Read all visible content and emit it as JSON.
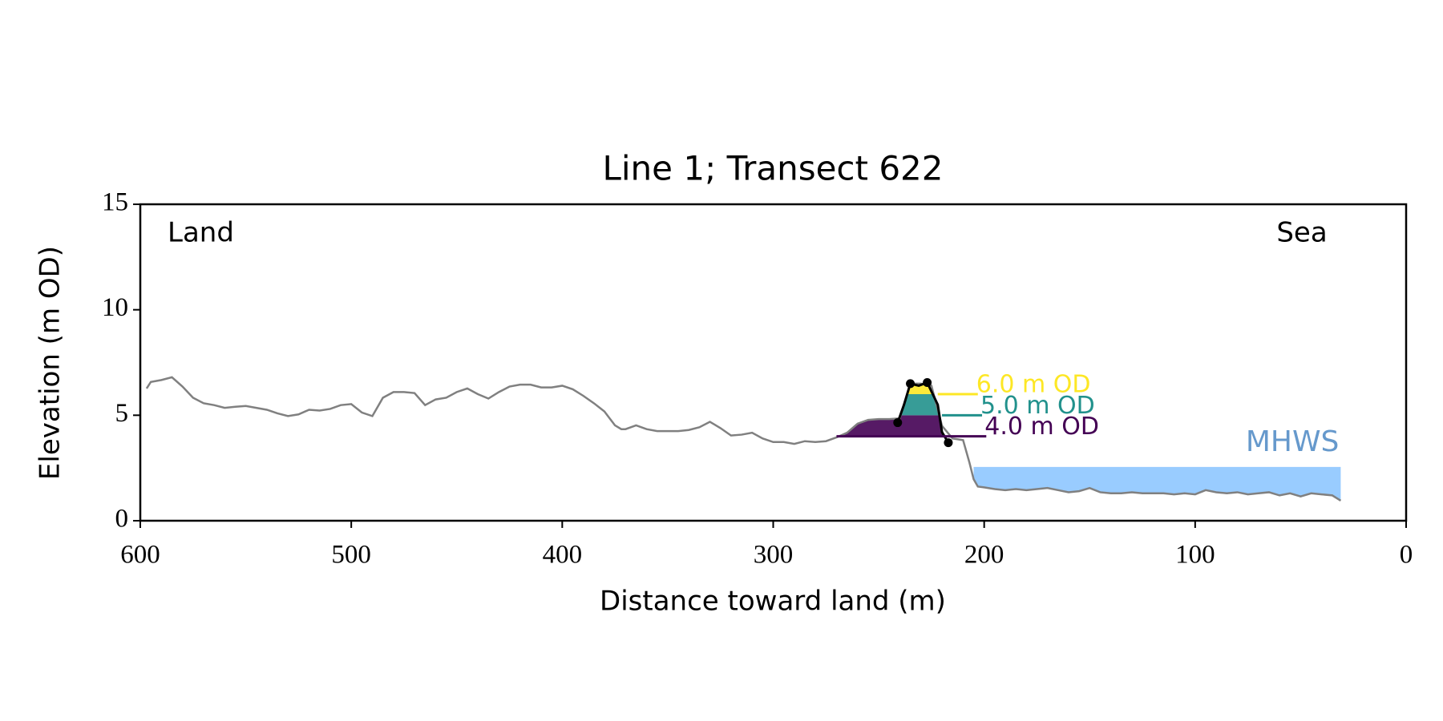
{
  "chart_data": {
    "type": "line",
    "title": "Line 1; Transect 622",
    "x_label": "Distance toward land (m)",
    "y_label": "Elevation (m OD)",
    "xlim": [
      600,
      0
    ],
    "ylim": [
      0,
      15
    ],
    "xticks": [
      600,
      500,
      400,
      300,
      200,
      100,
      0
    ],
    "yticks": [
      0,
      5,
      10,
      15
    ],
    "annotations": [
      {
        "text": "Land",
        "corner": "upper left"
      },
      {
        "text": "Sea",
        "corner": "upper right"
      }
    ],
    "series": [
      {
        "name": "Profile",
        "color": "#808080",
        "x": [
          597,
          595,
          590,
          585,
          580,
          575,
          570,
          565,
          560,
          555,
          550,
          545,
          540,
          535,
          530,
          525,
          520,
          515,
          510,
          505,
          500,
          495,
          490,
          485,
          480,
          475,
          470,
          465,
          460,
          455,
          450,
          445,
          440,
          435,
          430,
          425,
          420,
          415,
          410,
          405,
          400,
          395,
          390,
          385,
          380,
          375,
          372,
          370,
          365,
          360,
          355,
          350,
          345,
          340,
          335,
          330,
          325,
          320,
          315,
          310,
          305,
          300,
          295,
          290,
          285,
          280,
          275,
          270,
          265,
          260,
          255,
          250,
          245,
          240,
          235,
          230,
          225,
          220,
          215,
          210,
          207,
          205,
          203,
          200,
          195,
          190,
          185,
          180,
          175,
          170,
          165,
          160,
          155,
          150,
          145,
          140,
          135,
          130,
          125,
          120,
          115,
          110,
          105,
          100,
          95,
          90,
          85,
          80,
          75,
          70,
          65,
          60,
          55,
          50,
          45,
          40,
          35,
          31
        ],
        "values": [
          6.27,
          6.58,
          6.67,
          6.8,
          6.36,
          5.83,
          5.57,
          5.48,
          5.35,
          5.4,
          5.44,
          5.35,
          5.26,
          5.09,
          4.96,
          5.04,
          5.26,
          5.22,
          5.3,
          5.48,
          5.53,
          5.13,
          4.96,
          5.83,
          6.1,
          6.1,
          6.05,
          5.48,
          5.75,
          5.83,
          6.1,
          6.27,
          6.0,
          5.79,
          6.1,
          6.36,
          6.45,
          6.45,
          6.32,
          6.32,
          6.4,
          6.23,
          5.92,
          5.57,
          5.18,
          4.52,
          4.34,
          4.34,
          4.52,
          4.34,
          4.25,
          4.25,
          4.25,
          4.3,
          4.43,
          4.69,
          4.39,
          4.04,
          4.08,
          4.17,
          3.9,
          3.73,
          3.73,
          3.64,
          3.77,
          3.73,
          3.77,
          3.95,
          4.17,
          4.6,
          4.78,
          4.82,
          4.82,
          4.85,
          6.5,
          6.5,
          6.4,
          4.5,
          3.9,
          3.82,
          2.76,
          1.97,
          1.62,
          1.58,
          1.5,
          1.45,
          1.5,
          1.45,
          1.5,
          1.55,
          1.45,
          1.35,
          1.4,
          1.55,
          1.35,
          1.3,
          1.3,
          1.35,
          1.3,
          1.3,
          1.3,
          1.25,
          1.3,
          1.25,
          1.45,
          1.35,
          1.3,
          1.35,
          1.25,
          1.3,
          1.35,
          1.2,
          1.3,
          1.15,
          1.3,
          1.25,
          1.2,
          0.95
        ]
      },
      {
        "name": "Dune",
        "color": "#000000",
        "x": [
          241,
          238,
          235,
          231,
          227,
          222,
          220,
          217
        ],
        "values": [
          4.65,
          5.5,
          6.5,
          6.4,
          6.55,
          5.5,
          4.2,
          3.7
        ]
      }
    ],
    "points": {
      "color": "#000000",
      "x": [
        241,
        235,
        227,
        217
      ],
      "values": [
        4.65,
        6.5,
        6.55,
        3.7
      ]
    },
    "levels": [
      {
        "label": "4.0 m OD",
        "value": 4.0,
        "color": "#440154",
        "x": [
          270,
          199
        ]
      },
      {
        "label": "5.0 m OD",
        "value": 5.0,
        "color": "#21918c",
        "x": [
          220,
          201
        ]
      },
      {
        "label": "6.0 m OD",
        "value": 6.0,
        "color": "#fde725",
        "x": [
          222,
          203
        ]
      }
    ],
    "mhws": {
      "label": "MHWS",
      "value": 2.55,
      "color": "#99ccff",
      "label_color": "#6699cc",
      "x": [
        205,
        31
      ]
    }
  }
}
